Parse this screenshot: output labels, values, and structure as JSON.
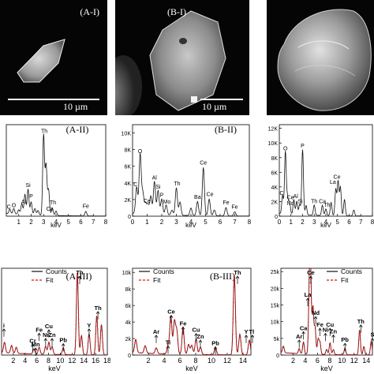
{
  "row1": {
    "a_label": "(A-I)",
    "b_label": "(B-I)",
    "a_scalebar": "10 µm",
    "b_scalebar": "10 µm"
  },
  "chart_data": [
    {
      "id": "A-II",
      "type": "line",
      "title": "(A-II)",
      "xlabel": "keV",
      "ylabel": "",
      "xlim": [
        0,
        8
      ],
      "ylim": [
        0,
        1.0
      ],
      "xticks": [
        1,
        2,
        3,
        4,
        5,
        6,
        7,
        8
      ],
      "yticks": [],
      "series": [
        {
          "peaks": [
            [
              0.28,
              0.05
            ],
            [
              0.6,
              0.06
            ],
            [
              1.0,
              0.05
            ],
            [
              1.25,
              0.12
            ],
            [
              1.5,
              0.22
            ],
            [
              1.75,
              0.28
            ],
            [
              2.0,
              0.14
            ],
            [
              2.3,
              0.07
            ],
            [
              2.55,
              0.05
            ],
            [
              3.0,
              0.88
            ],
            [
              3.2,
              0.55
            ],
            [
              3.4,
              0.28
            ],
            [
              3.7,
              0.08
            ],
            [
              4.0,
              0.05
            ],
            [
              6.4,
              0.05
            ]
          ]
        }
      ],
      "annotations": [
        {
          "text": "Th",
          "x": 3.05,
          "y": 0.91
        },
        {
          "text": "Si",
          "x": 1.75,
          "y": 0.32
        },
        {
          "text": "P",
          "x": 2.0,
          "y": 0.2
        },
        {
          "text": "Al",
          "x": 1.4,
          "y": 0.14
        },
        {
          "text": "C",
          "x": 0.2,
          "y": 0.08
        },
        {
          "text": "O",
          "x": 0.6,
          "y": 0.1
        },
        {
          "text": "Th",
          "x": 3.75,
          "y": 0.13
        },
        {
          "text": "Ca",
          "x": 3.5,
          "y": 0.06
        },
        {
          "text": "Fe",
          "x": 6.4,
          "y": 0.09
        }
      ]
    },
    {
      "id": "B-II",
      "type": "line",
      "title": "(B-II)",
      "xlabel": "keV",
      "ylabel": "",
      "xlim": [
        0,
        8
      ],
      "ylim": [
        0,
        11000
      ],
      "xticks": [
        0,
        1,
        2,
        3,
        4,
        5,
        6,
        7,
        8
      ],
      "yticks": [
        0,
        2000,
        4000,
        6000,
        8000,
        10000
      ],
      "ytick_labels": [
        "0",
        "2K",
        "4K",
        "6K",
        "8K",
        "10K"
      ],
      "series": [
        {
          "peaks": [
            [
              0.28,
              3200
            ],
            [
              0.52,
              7200
            ],
            [
              0.7,
              2500
            ],
            [
              0.88,
              1300
            ],
            [
              1.05,
              1200
            ],
            [
              1.25,
              2200
            ],
            [
              1.5,
              4000
            ],
            [
              1.75,
              2900
            ],
            [
              2.0,
              1900
            ],
            [
              2.3,
              1200
            ],
            [
              2.7,
              600
            ],
            [
              3.0,
              3300
            ],
            [
              3.25,
              1600
            ],
            [
              4.0,
              900
            ],
            [
              4.45,
              1700
            ],
            [
              4.85,
              5800
            ],
            [
              5.25,
              2000
            ],
            [
              5.6,
              700
            ],
            [
              6.4,
              1000
            ],
            [
              7.0,
              500
            ]
          ]
        }
      ],
      "annotations": [
        {
          "text": "O",
          "x": 0.52,
          "y": 7600
        },
        {
          "text": "C",
          "x": 0.2,
          "y": 3600
        },
        {
          "text": "Al",
          "x": 1.5,
          "y": 4400
        },
        {
          "text": "Si",
          "x": 1.75,
          "y": 3300
        },
        {
          "text": "P",
          "x": 2.0,
          "y": 2300
        },
        {
          "text": "Mo",
          "x": 2.35,
          "y": 1500
        },
        {
          "text": "Ce",
          "x": 1.0,
          "y": 1600
        },
        {
          "text": "Th",
          "x": 3.05,
          "y": 3700
        },
        {
          "text": "Ba",
          "x": 4.45,
          "y": 2100
        },
        {
          "text": "Ce",
          "x": 4.85,
          "y": 6200
        },
        {
          "text": "Ce",
          "x": 5.3,
          "y": 2400
        },
        {
          "text": "Fe",
          "x": 6.4,
          "y": 1400
        },
        {
          "text": "Fe",
          "x": 7.0,
          "y": 900
        }
      ]
    },
    {
      "id": "C-II",
      "type": "line",
      "title": "",
      "xlabel": "keV",
      "ylabel": "",
      "xlim": [
        0,
        8
      ],
      "ylim": [
        0,
        12500
      ],
      "xticks": [
        0,
        1,
        2,
        3,
        4,
        5,
        6,
        7,
        8
      ],
      "yticks": [
        0,
        2000,
        4000,
        6000,
        8000,
        10000,
        12000
      ],
      "ytick_labels": [
        "0",
        "2K",
        "4K",
        "6K",
        "8K",
        "10K",
        "12K"
      ],
      "series": [
        {
          "peaks": [
            [
              0.28,
              2500
            ],
            [
              0.52,
              8500
            ],
            [
              0.7,
              2300
            ],
            [
              0.88,
              1700
            ],
            [
              1.25,
              2000
            ],
            [
              1.5,
              1800
            ],
            [
              1.75,
              1400
            ],
            [
              2.0,
              8900
            ],
            [
              2.3,
              1300
            ],
            [
              3.0,
              1400
            ],
            [
              3.7,
              1400
            ],
            [
              4.0,
              900
            ],
            [
              4.45,
              1800
            ],
            [
              4.85,
              3600
            ],
            [
              5.05,
              4700
            ],
            [
              5.25,
              3900
            ],
            [
              5.6,
              2200
            ],
            [
              6.4,
              800
            ]
          ]
        }
      ],
      "annotations": [
        {
          "text": "O",
          "x": 0.52,
          "y": 9000
        },
        {
          "text": "P",
          "x": 2.0,
          "y": 9400
        },
        {
          "text": "C",
          "x": 0.2,
          "y": 2900
        },
        {
          "text": "Ce",
          "x": 0.95,
          "y": 2300
        },
        {
          "text": "Al",
          "x": 1.4,
          "y": 2500
        },
        {
          "text": "Nd",
          "x": 0.95,
          "y": 1500
        },
        {
          "text": "Si",
          "x": 1.8,
          "y": 1800
        },
        {
          "text": "Th",
          "x": 3.0,
          "y": 1800
        },
        {
          "text": "Ca",
          "x": 3.7,
          "y": 1800
        },
        {
          "text": "La",
          "x": 4.6,
          "y": 4400
        },
        {
          "text": "Ce",
          "x": 4.95,
          "y": 5100
        },
        {
          "text": "Th",
          "x": 4.1,
          "y": 1300
        }
      ]
    },
    {
      "id": "A-III",
      "type": "line",
      "title": "(A-III)",
      "xlabel": "keV",
      "ylabel": "",
      "xlim": [
        0,
        18
      ],
      "ylim": [
        0,
        1.0
      ],
      "xticks": [
        2,
        4,
        6,
        8,
        10,
        12,
        14,
        16,
        18
      ],
      "yticks": [],
      "legend": [
        "Counts",
        "Fit"
      ],
      "series": [
        {
          "name": "Counts",
          "peaks": [
            [
              0.5,
              0.12
            ],
            [
              1.7,
              0.09
            ],
            [
              2.5,
              0.07
            ],
            [
              5.5,
              0.06
            ],
            [
              6.4,
              0.08
            ],
            [
              7.5,
              0.09
            ],
            [
              8.05,
              0.14
            ],
            [
              8.6,
              0.09
            ],
            [
              10.5,
              0.08
            ],
            [
              12.9,
              0.95
            ],
            [
              13.6,
              0.22
            ],
            [
              14.9,
              0.24
            ],
            [
              16.2,
              0.45
            ],
            [
              17.0,
              0.35
            ]
          ]
        },
        {
          "name": "Fit",
          "peaks": [
            [
              0.5,
              0.12
            ],
            [
              1.7,
              0.09
            ],
            [
              2.5,
              0.07
            ],
            [
              5.5,
              0.06
            ],
            [
              6.4,
              0.08
            ],
            [
              7.5,
              0.09
            ],
            [
              8.05,
              0.14
            ],
            [
              8.6,
              0.09
            ],
            [
              10.5,
              0.08
            ],
            [
              12.9,
              0.95
            ],
            [
              13.6,
              0.22
            ],
            [
              14.9,
              0.24
            ],
            [
              16.2,
              0.45
            ],
            [
              17.0,
              0.35
            ]
          ]
        }
      ],
      "annotations": [
        {
          "text": "Th",
          "x": 13.3,
          "y": 0.97
        },
        {
          "text": "Fe",
          "x": 6.4,
          "y": 0.27
        },
        {
          "text": "Ni",
          "x": 7.5,
          "y": 0.21
        },
        {
          "text": "Cu",
          "x": 8.05,
          "y": 0.31
        },
        {
          "text": "Zn",
          "x": 8.6,
          "y": 0.21
        },
        {
          "text": "Pb",
          "x": 10.5,
          "y": 0.15
        },
        {
          "text": "Y",
          "x": 14.9,
          "y": 0.32
        },
        {
          "text": "Th",
          "x": 16.4,
          "y": 0.52
        },
        {
          "text": "Cr",
          "x": 5.3,
          "y": 0.14
        },
        {
          "text": "Mn",
          "x": 5.8,
          "y": 0.1
        },
        {
          "text": "i",
          "x": 0.4,
          "y": 0.32
        }
      ]
    },
    {
      "id": "B-III",
      "type": "line",
      "title": "(B-III)",
      "xlabel": "keV",
      "ylabel": "",
      "xlim": [
        0,
        15
      ],
      "ylim": [
        0,
        10500
      ],
      "xticks": [
        2,
        4,
        6,
        8,
        10,
        12,
        14
      ],
      "yticks": [
        0,
        2000,
        4000,
        6000,
        8000,
        10000
      ],
      "ytick_labels": [
        "0",
        "2k",
        "4k",
        "6k",
        "8k",
        "10k"
      ],
      "legend": [
        "Counts",
        "Fit"
      ],
      "series": [
        {
          "name": "Counts",
          "peaks": [
            [
              0.4,
              1600
            ],
            [
              1.6,
              900
            ],
            [
              3.0,
              700
            ],
            [
              4.5,
              1000
            ],
            [
              4.85,
              4600
            ],
            [
              5.3,
              3900
            ],
            [
              5.6,
              2800
            ],
            [
              6.4,
              3200
            ],
            [
              7.1,
              1200
            ],
            [
              7.5,
              1100
            ],
            [
              8.05,
              1900
            ],
            [
              8.6,
              900
            ],
            [
              10.5,
              800
            ],
            [
              12.9,
              9700
            ],
            [
              13.6,
              2500
            ],
            [
              14.8,
              1800
            ]
          ]
        },
        {
          "name": "Fit",
          "peaks": [
            [
              0.4,
              1600
            ],
            [
              1.6,
              900
            ],
            [
              3.0,
              700
            ],
            [
              4.5,
              1000
            ],
            [
              4.85,
              4600
            ],
            [
              5.3,
              3900
            ],
            [
              5.6,
              2800
            ],
            [
              6.4,
              3200
            ],
            [
              7.1,
              1200
            ],
            [
              7.5,
              1100
            ],
            [
              8.05,
              1900
            ],
            [
              8.6,
              900
            ],
            [
              10.5,
              800
            ],
            [
              12.9,
              9700
            ],
            [
              13.6,
              2500
            ],
            [
              14.8,
              1800
            ]
          ]
        }
      ],
      "annotations": [
        {
          "text": "Th",
          "x": 13.3,
          "y": 9900
        },
        {
          "text": "Ce",
          "x": 4.9,
          "y": 5000
        },
        {
          "text": "Fe",
          "x": 6.4,
          "y": 3600
        },
        {
          "text": "Cu",
          "x": 8.05,
          "y": 2800
        },
        {
          "text": "Zn",
          "x": 8.6,
          "y": 2000
        },
        {
          "text": "Ti",
          "x": 4.5,
          "y": 1300
        },
        {
          "text": "Ar",
          "x": 3.0,
          "y": 2600
        },
        {
          "text": "Pb",
          "x": 10.5,
          "y": 1200
        },
        {
          "text": "Y",
          "x": 14.4,
          "y": 2600
        },
        {
          "text": "Th",
          "x": 15.2,
          "y": 2600
        }
      ]
    },
    {
      "id": "C-III",
      "type": "line",
      "title": "",
      "xlabel": "keV",
      "ylabel": "",
      "xlim": [
        0,
        15
      ],
      "ylim": [
        0,
        26000
      ],
      "xticks": [
        2,
        4,
        6,
        8,
        10,
        12,
        14
      ],
      "yticks": [
        0,
        5000,
        10000,
        15000,
        20000,
        25000
      ],
      "ytick_labels": [
        "0",
        "5k",
        "10k",
        "15k",
        "20k",
        "25k"
      ],
      "legend": [
        "Counts",
        "Fit"
      ],
      "series": [
        {
          "name": "Counts",
          "peaks": [
            [
              0.4,
              2000
            ],
            [
              3.0,
              1500
            ],
            [
              3.7,
              3500
            ],
            [
              4.65,
              16000
            ],
            [
              4.85,
              25000
            ],
            [
              5.25,
              14000
            ],
            [
              5.6,
              8000
            ],
            [
              6.1,
              4500
            ],
            [
              6.4,
              3500
            ],
            [
              7.5,
              1500
            ],
            [
              8.05,
              3500
            ],
            [
              8.6,
              1500
            ],
            [
              10.5,
              2000
            ],
            [
              12.9,
              7500
            ],
            [
              13.6,
              2500
            ],
            [
              14.8,
              4000
            ]
          ]
        },
        {
          "name": "Fit",
          "peaks": [
            [
              0.4,
              2000
            ],
            [
              3.0,
              1500
            ],
            [
              3.7,
              3500
            ],
            [
              4.65,
              16000
            ],
            [
              4.85,
              25000
            ],
            [
              5.25,
              14000
            ],
            [
              5.6,
              8000
            ],
            [
              6.1,
              4500
            ],
            [
              6.4,
              3500
            ],
            [
              7.5,
              1500
            ],
            [
              8.05,
              3500
            ],
            [
              8.6,
              1500
            ],
            [
              10.5,
              2000
            ],
            [
              12.9,
              7500
            ],
            [
              13.6,
              2500
            ],
            [
              14.8,
              4000
            ]
          ]
        }
      ],
      "annotations": [
        {
          "text": "Ce",
          "x": 4.9,
          "y": 25500
        },
        {
          "text": "La",
          "x": 4.4,
          "y": 17500
        },
        {
          "text": "Nd",
          "x": 5.7,
          "y": 12000
        },
        {
          "text": "Fe",
          "x": 6.4,
          "y": 8500
        },
        {
          "text": "Ni",
          "x": 7.3,
          "y": 7000
        },
        {
          "text": "Ca",
          "x": 3.7,
          "y": 7500
        },
        {
          "text": "Ar",
          "x": 3.0,
          "y": 5000
        },
        {
          "text": "Cu",
          "x": 8.05,
          "y": 8500
        },
        {
          "text": "Zn",
          "x": 8.6,
          "y": 6500
        },
        {
          "text": "Pb",
          "x": 10.5,
          "y": 4000
        },
        {
          "text": "Th",
          "x": 13.1,
          "y": 9500
        },
        {
          "text": "S",
          "x": 15.0,
          "y": 5500
        }
      ]
    }
  ]
}
